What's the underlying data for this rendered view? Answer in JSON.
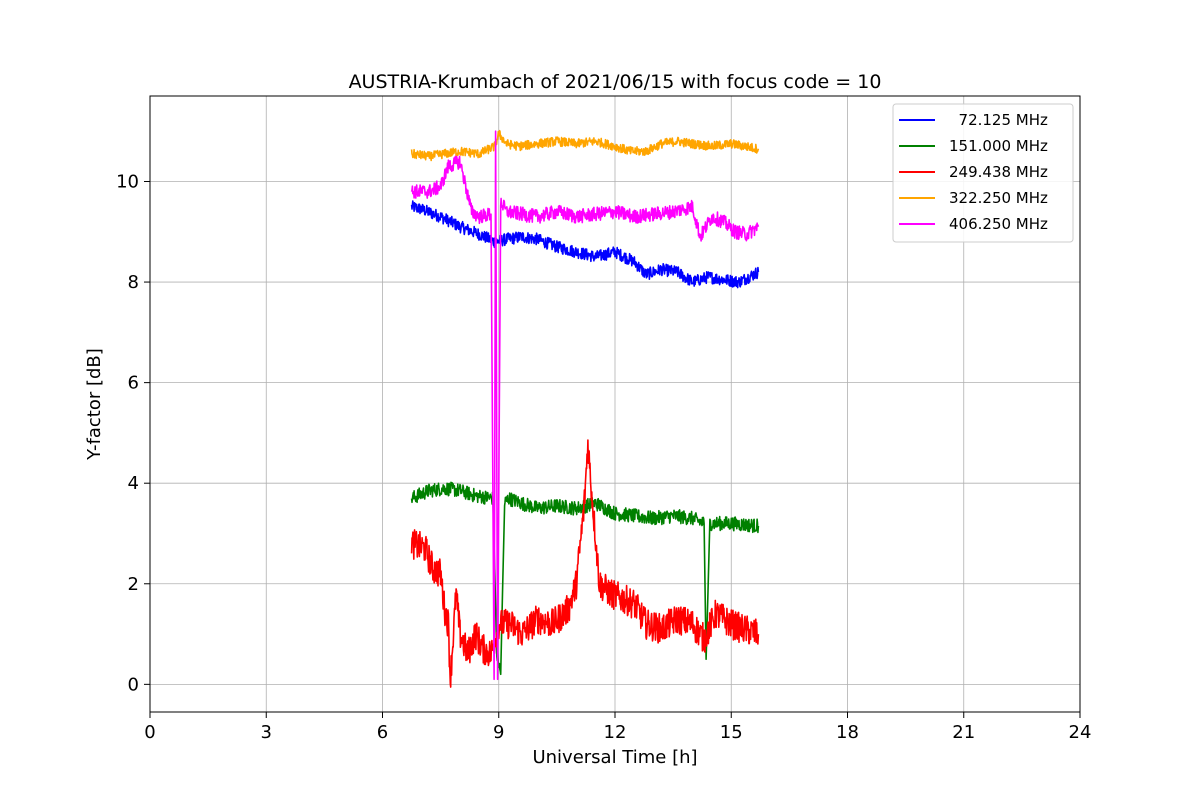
{
  "chart_data": {
    "type": "line",
    "title": "AUSTRIA-Krumbach of 2021/06/15 with focus code = 10",
    "xlabel": "Universal Time [h]",
    "ylabel": "Y-factor [dB]",
    "xlim": [
      0,
      24
    ],
    "ylim": [
      -0.55,
      11.7
    ],
    "xticks": [
      0,
      3,
      6,
      9,
      12,
      15,
      18,
      21,
      24
    ],
    "yticks": [
      0,
      2,
      4,
      6,
      8,
      10
    ],
    "grid": true,
    "legend_position": "top-right",
    "series": [
      {
        "name": "  72.125 MHz",
        "color": "#0000ff",
        "x": [
          6.75,
          7.0,
          7.5,
          8.0,
          8.5,
          8.9,
          9.2,
          9.6,
          10.0,
          10.5,
          11.0,
          11.5,
          12.0,
          12.5,
          12.8,
          13.2,
          13.6,
          14.0,
          14.4,
          14.8,
          15.2,
          15.7
        ],
        "y": [
          9.5,
          9.45,
          9.3,
          9.1,
          8.95,
          8.8,
          8.85,
          8.9,
          8.85,
          8.7,
          8.6,
          8.5,
          8.6,
          8.4,
          8.15,
          8.25,
          8.2,
          8.0,
          8.1,
          8.05,
          8.0,
          8.2
        ],
        "noise": 0.12
      },
      {
        "name": "151.000 MHz",
        "color": "#008000",
        "x": [
          6.75,
          7.2,
          7.6,
          8.0,
          8.4,
          8.85,
          8.95,
          9.05,
          9.15,
          9.25,
          9.6,
          10.0,
          10.5,
          11.0,
          11.5,
          12.0,
          12.5,
          13.0,
          13.5,
          14.0,
          14.3,
          14.35,
          14.45,
          15.0,
          15.7
        ],
        "y": [
          3.7,
          3.85,
          3.9,
          3.85,
          3.75,
          3.7,
          0.6,
          0.2,
          3.6,
          3.7,
          3.6,
          3.5,
          3.55,
          3.5,
          3.6,
          3.4,
          3.35,
          3.3,
          3.35,
          3.3,
          3.2,
          0.5,
          3.2,
          3.2,
          3.15
        ],
        "noise": 0.14
      },
      {
        "name": "249.438 MHz",
        "color": "#ff0000",
        "x": [
          6.75,
          7.1,
          7.3,
          7.5,
          7.6,
          7.7,
          7.75,
          7.9,
          8.0,
          8.2,
          8.4,
          8.6,
          8.8,
          9.0,
          9.3,
          9.6,
          10.0,
          10.4,
          10.8,
          11.0,
          11.2,
          11.3,
          11.4,
          11.6,
          11.9,
          12.2,
          12.5,
          12.8,
          13.2,
          13.6,
          14.0,
          14.3,
          14.6,
          15.0,
          15.3,
          15.7
        ],
        "y": [
          2.8,
          2.7,
          2.3,
          2.2,
          1.5,
          1.2,
          0.1,
          1.8,
          1.0,
          0.6,
          1.0,
          0.7,
          0.6,
          1.2,
          1.2,
          1.0,
          1.3,
          1.2,
          1.5,
          2.0,
          3.5,
          4.8,
          3.8,
          2.0,
          1.8,
          1.7,
          1.6,
          1.2,
          1.1,
          1.3,
          1.2,
          0.9,
          1.4,
          1.2,
          1.1,
          1.0
        ],
        "noise": 0.3
      },
      {
        "name": "322.250 MHz",
        "color": "#ffa500",
        "x": [
          6.75,
          7.2,
          7.6,
          8.0,
          8.5,
          8.9,
          9.0,
          9.2,
          9.5,
          10.0,
          10.5,
          11.0,
          11.5,
          12.0,
          12.4,
          12.8,
          13.2,
          13.6,
          14.0,
          14.5,
          15.0,
          15.7
        ],
        "y": [
          10.55,
          10.5,
          10.55,
          10.6,
          10.55,
          10.7,
          10.95,
          10.75,
          10.7,
          10.75,
          10.8,
          10.75,
          10.8,
          10.7,
          10.6,
          10.6,
          10.75,
          10.8,
          10.75,
          10.7,
          10.75,
          10.65
        ],
        "noise": 0.09
      },
      {
        "name": "406.250 MHz",
        "color": "#ff00ff",
        "x": [
          6.75,
          7.2,
          7.5,
          7.7,
          8.0,
          8.3,
          8.5,
          8.8,
          8.88,
          8.92,
          8.97,
          9.05,
          9.2,
          9.6,
          10.0,
          10.5,
          11.0,
          11.5,
          12.0,
          12.5,
          13.0,
          13.5,
          14.0,
          14.2,
          14.5,
          14.8,
          15.1,
          15.4,
          15.7
        ],
        "y": [
          9.8,
          9.8,
          9.9,
          10.3,
          10.4,
          9.4,
          9.3,
          9.35,
          0.1,
          11.0,
          0.1,
          9.6,
          9.4,
          9.35,
          9.3,
          9.4,
          9.3,
          9.35,
          9.4,
          9.3,
          9.35,
          9.4,
          9.5,
          8.9,
          9.3,
          9.2,
          9.0,
          8.95,
          9.1
        ],
        "noise": 0.14
      }
    ]
  }
}
